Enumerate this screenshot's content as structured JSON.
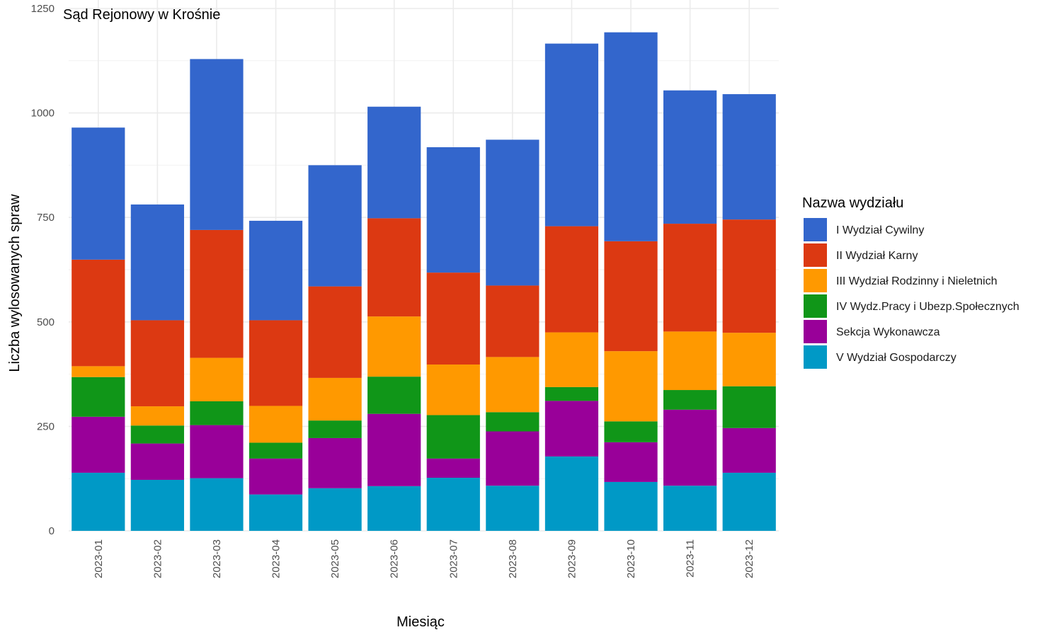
{
  "chart_data": {
    "type": "bar",
    "stacked": true,
    "title": "Sąd Rejonowy w Krośnie",
    "xlabel": "Miesiąc",
    "ylabel": "Liczba wylosowanych spraw",
    "ylim": [
      0,
      1250
    ],
    "yticks": [
      0,
      250,
      500,
      750,
      1000,
      1250
    ],
    "grid": true,
    "legend_title": "Nazwa wydziału",
    "legend_position": "right",
    "categories": [
      "2023-01",
      "2023-02",
      "2023-03",
      "2023-04",
      "2023-05",
      "2023-06",
      "2023-07",
      "2023-08",
      "2023-09",
      "2023-10",
      "2023-11",
      "2023-12"
    ],
    "series": [
      {
        "name": "V Wydział Gospodarczy",
        "color": "#0099C6",
        "values": [
          139,
          122,
          126,
          87,
          102,
          107,
          127,
          108,
          178,
          117,
          108,
          139
        ]
      },
      {
        "name": "Sekcja Wykonawcza",
        "color": "#990099",
        "values": [
          134,
          87,
          127,
          86,
          120,
          173,
          46,
          130,
          133,
          95,
          182,
          107
        ]
      },
      {
        "name": "IV Wydz.Pracy i Ubezp.Społecznych",
        "color": "#109618",
        "values": [
          95,
          43,
          57,
          38,
          42,
          89,
          104,
          46,
          33,
          50,
          47,
          100
        ]
      },
      {
        "name": "III Wydział Rodzinny i Nieletnich",
        "color": "#FF9900",
        "values": [
          26,
          46,
          104,
          88,
          102,
          144,
          121,
          132,
          131,
          168,
          140,
          128
        ]
      },
      {
        "name": "II Wydział Karny",
        "color": "#DC3912",
        "values": [
          255,
          206,
          306,
          205,
          219,
          235,
          220,
          171,
          254,
          263,
          258,
          271
        ]
      },
      {
        "name": "I Wydział Cywilny",
        "color": "#3366CC",
        "values": [
          316,
          277,
          409,
          238,
          290,
          267,
          300,
          349,
          437,
          500,
          319,
          300
        ]
      }
    ]
  }
}
